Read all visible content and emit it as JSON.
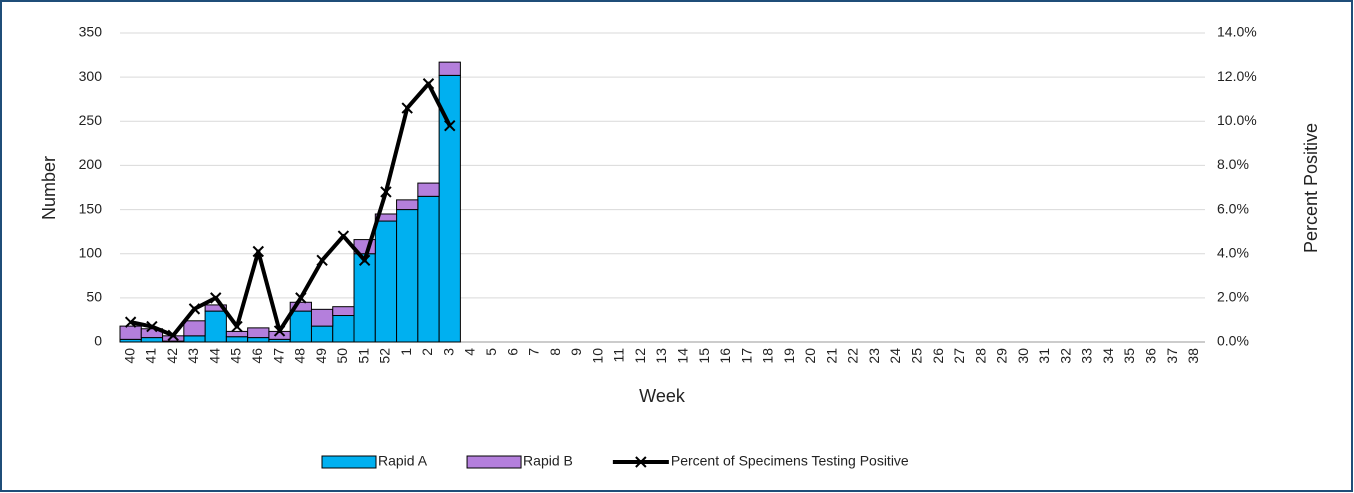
{
  "chart_data": {
    "type": "bar",
    "categories": [
      "40",
      "41",
      "42",
      "43",
      "44",
      "45",
      "46",
      "47",
      "48",
      "49",
      "50",
      "51",
      "52",
      "1",
      "2",
      "3",
      "4",
      "5",
      "6",
      "7",
      "8",
      "9",
      "10",
      "11",
      "12",
      "13",
      "14",
      "15",
      "16",
      "17",
      "18",
      "19",
      "20",
      "21",
      "22",
      "23",
      "24",
      "25",
      "26",
      "27",
      "28",
      "29",
      "30",
      "31",
      "32",
      "33",
      "34",
      "35",
      "36",
      "37",
      "38"
    ],
    "series": [
      {
        "name": "Rapid A",
        "color": "#00b0f0",
        "values": [
          3,
          5,
          1,
          7,
          35,
          6,
          5,
          3,
          35,
          18,
          30,
          100,
          137,
          150,
          165,
          302,
          null,
          null,
          null,
          null,
          null,
          null,
          null,
          null,
          null,
          null,
          null,
          null,
          null,
          null,
          null,
          null,
          null,
          null,
          null,
          null,
          null,
          null,
          null,
          null,
          null,
          null,
          null,
          null,
          null,
          null,
          null,
          null,
          null,
          null,
          null
        ]
      },
      {
        "name": "Rapid B",
        "color": "#b47fdc",
        "values": [
          15,
          10,
          6,
          17,
          7,
          6,
          11,
          9,
          10,
          19,
          10,
          16,
          8,
          11,
          15,
          15,
          null,
          null,
          null,
          null,
          null,
          null,
          null,
          null,
          null,
          null,
          null,
          null,
          null,
          null,
          null,
          null,
          null,
          null,
          null,
          null,
          null,
          null,
          null,
          null,
          null,
          null,
          null,
          null,
          null,
          null,
          null,
          null,
          null,
          null,
          null
        ]
      },
      {
        "name": "Percent of Specimens Testing Positive",
        "color": "#000000",
        "axis": "y2",
        "type": "line",
        "values": [
          0.9,
          0.7,
          0.3,
          1.5,
          2.0,
          0.7,
          4.1,
          0.5,
          2.0,
          3.7,
          4.8,
          3.7,
          6.8,
          10.6,
          11.7,
          9.8,
          null,
          null,
          null,
          null,
          null,
          null,
          null,
          null,
          null,
          null,
          null,
          null,
          null,
          null,
          null,
          null,
          null,
          null,
          null,
          null,
          null,
          null,
          null,
          null,
          null,
          null,
          null,
          null,
          null,
          null,
          null,
          null,
          null,
          null,
          null
        ]
      }
    ],
    "stacked": true,
    "x_label": "Week",
    "y_label": "Number",
    "y2_label": "Percent Positive",
    "ylim": [
      0,
      350
    ],
    "yticks": [
      0,
      50,
      100,
      150,
      200,
      250,
      300,
      350
    ],
    "y2lim": [
      0,
      14
    ],
    "y2ticks": [
      {
        "value": 0,
        "label": "0.0%"
      },
      {
        "value": 2,
        "label": "2.0%"
      },
      {
        "value": 4,
        "label": "4.0%"
      },
      {
        "value": 6,
        "label": "6.0%"
      },
      {
        "value": 8,
        "label": "8.0%"
      },
      {
        "value": 10,
        "label": "10.0%"
      },
      {
        "value": 12,
        "label": "12.0%"
      },
      {
        "value": 14,
        "label": "14.0%"
      }
    ],
    "grid": true,
    "legend": "bottom"
  }
}
